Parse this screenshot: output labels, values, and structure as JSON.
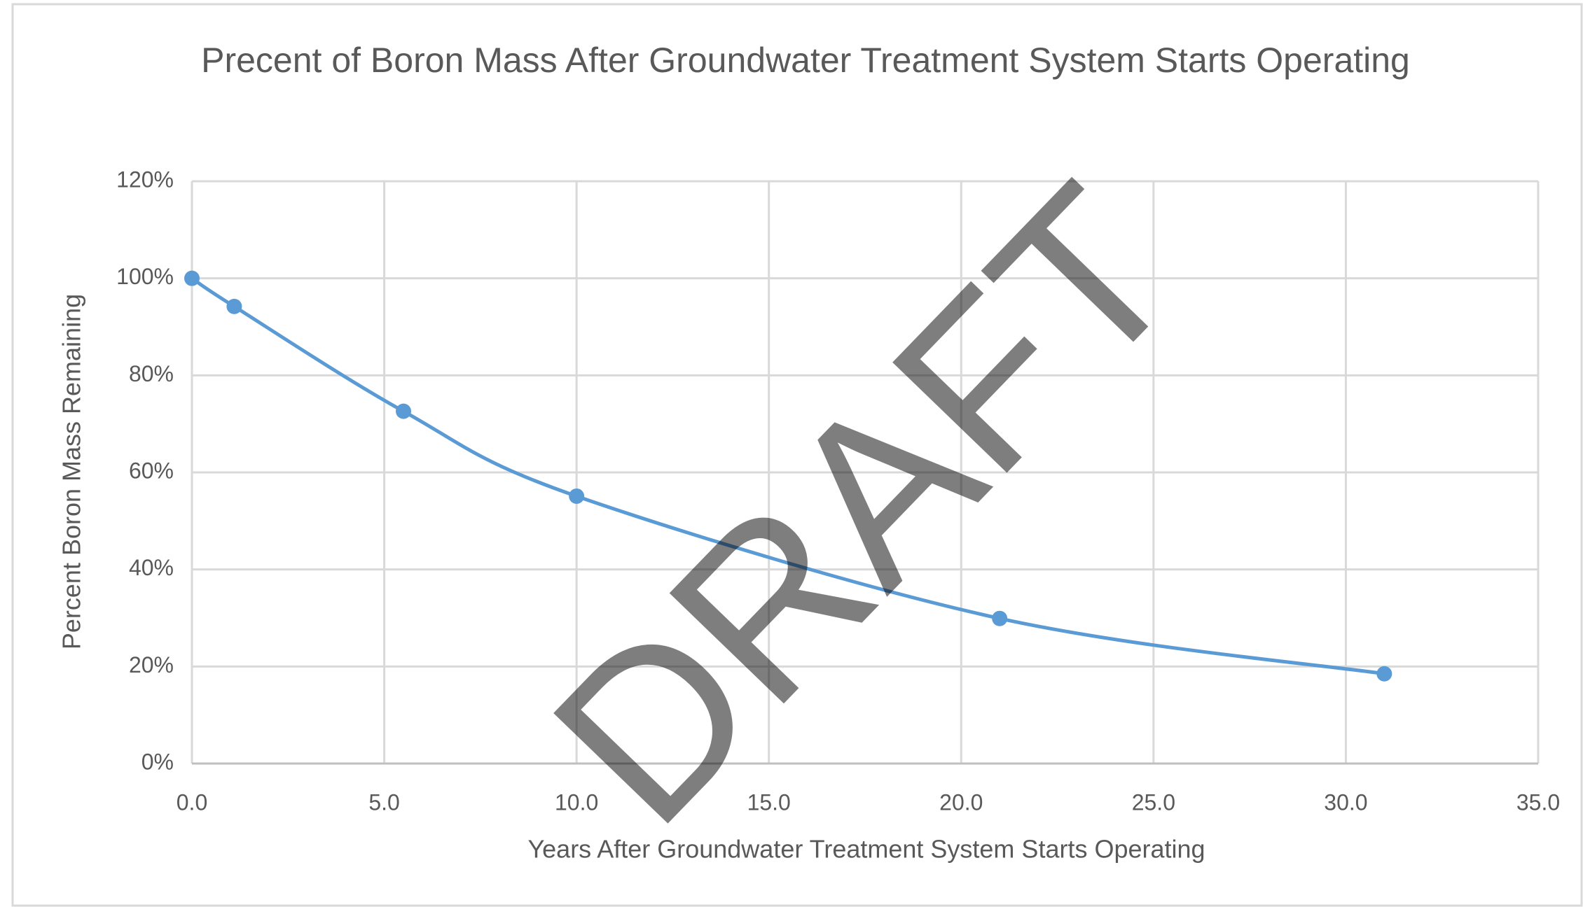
{
  "chart_data": {
    "type": "line",
    "title": "Precent of Boron Mass After Groundwater Treatment System Starts Operating",
    "x_label": "Years After Groundwater Treatment System Starts Operating",
    "y_label": "Percent Boron Mass Remaining",
    "watermark": "DRAFT",
    "x": [
      0.0,
      1.1,
      5.5,
      10.0,
      21.0,
      31.0
    ],
    "series": [
      {
        "color": "#5b9bd5",
        "values": [
          100,
          94.2,
          72.6,
          55.1,
          29.9,
          18.5
        ]
      }
    ],
    "xlim": [
      0,
      35
    ],
    "xticks": [
      {
        "value": 0,
        "label": "0.0"
      },
      {
        "value": 5,
        "label": "5.0"
      },
      {
        "value": 10,
        "label": "10.0"
      },
      {
        "value": 15,
        "label": "15.0"
      },
      {
        "value": 20,
        "label": "20.0"
      },
      {
        "value": 25,
        "label": "25.0"
      },
      {
        "value": 30,
        "label": "30.0"
      },
      {
        "value": 35,
        "label": "35.0"
      }
    ],
    "ylim": [
      0,
      120
    ],
    "yticks": [
      {
        "value": 0,
        "label": "0%"
      },
      {
        "value": 20,
        "label": "20%"
      },
      {
        "value": 40,
        "label": "40%"
      },
      {
        "value": 60,
        "label": "60%"
      },
      {
        "value": 80,
        "label": "80%"
      },
      {
        "value": 100,
        "label": "100%"
      },
      {
        "value": 120,
        "label": "120%"
      }
    ],
    "grid": true,
    "smooth": true
  }
}
